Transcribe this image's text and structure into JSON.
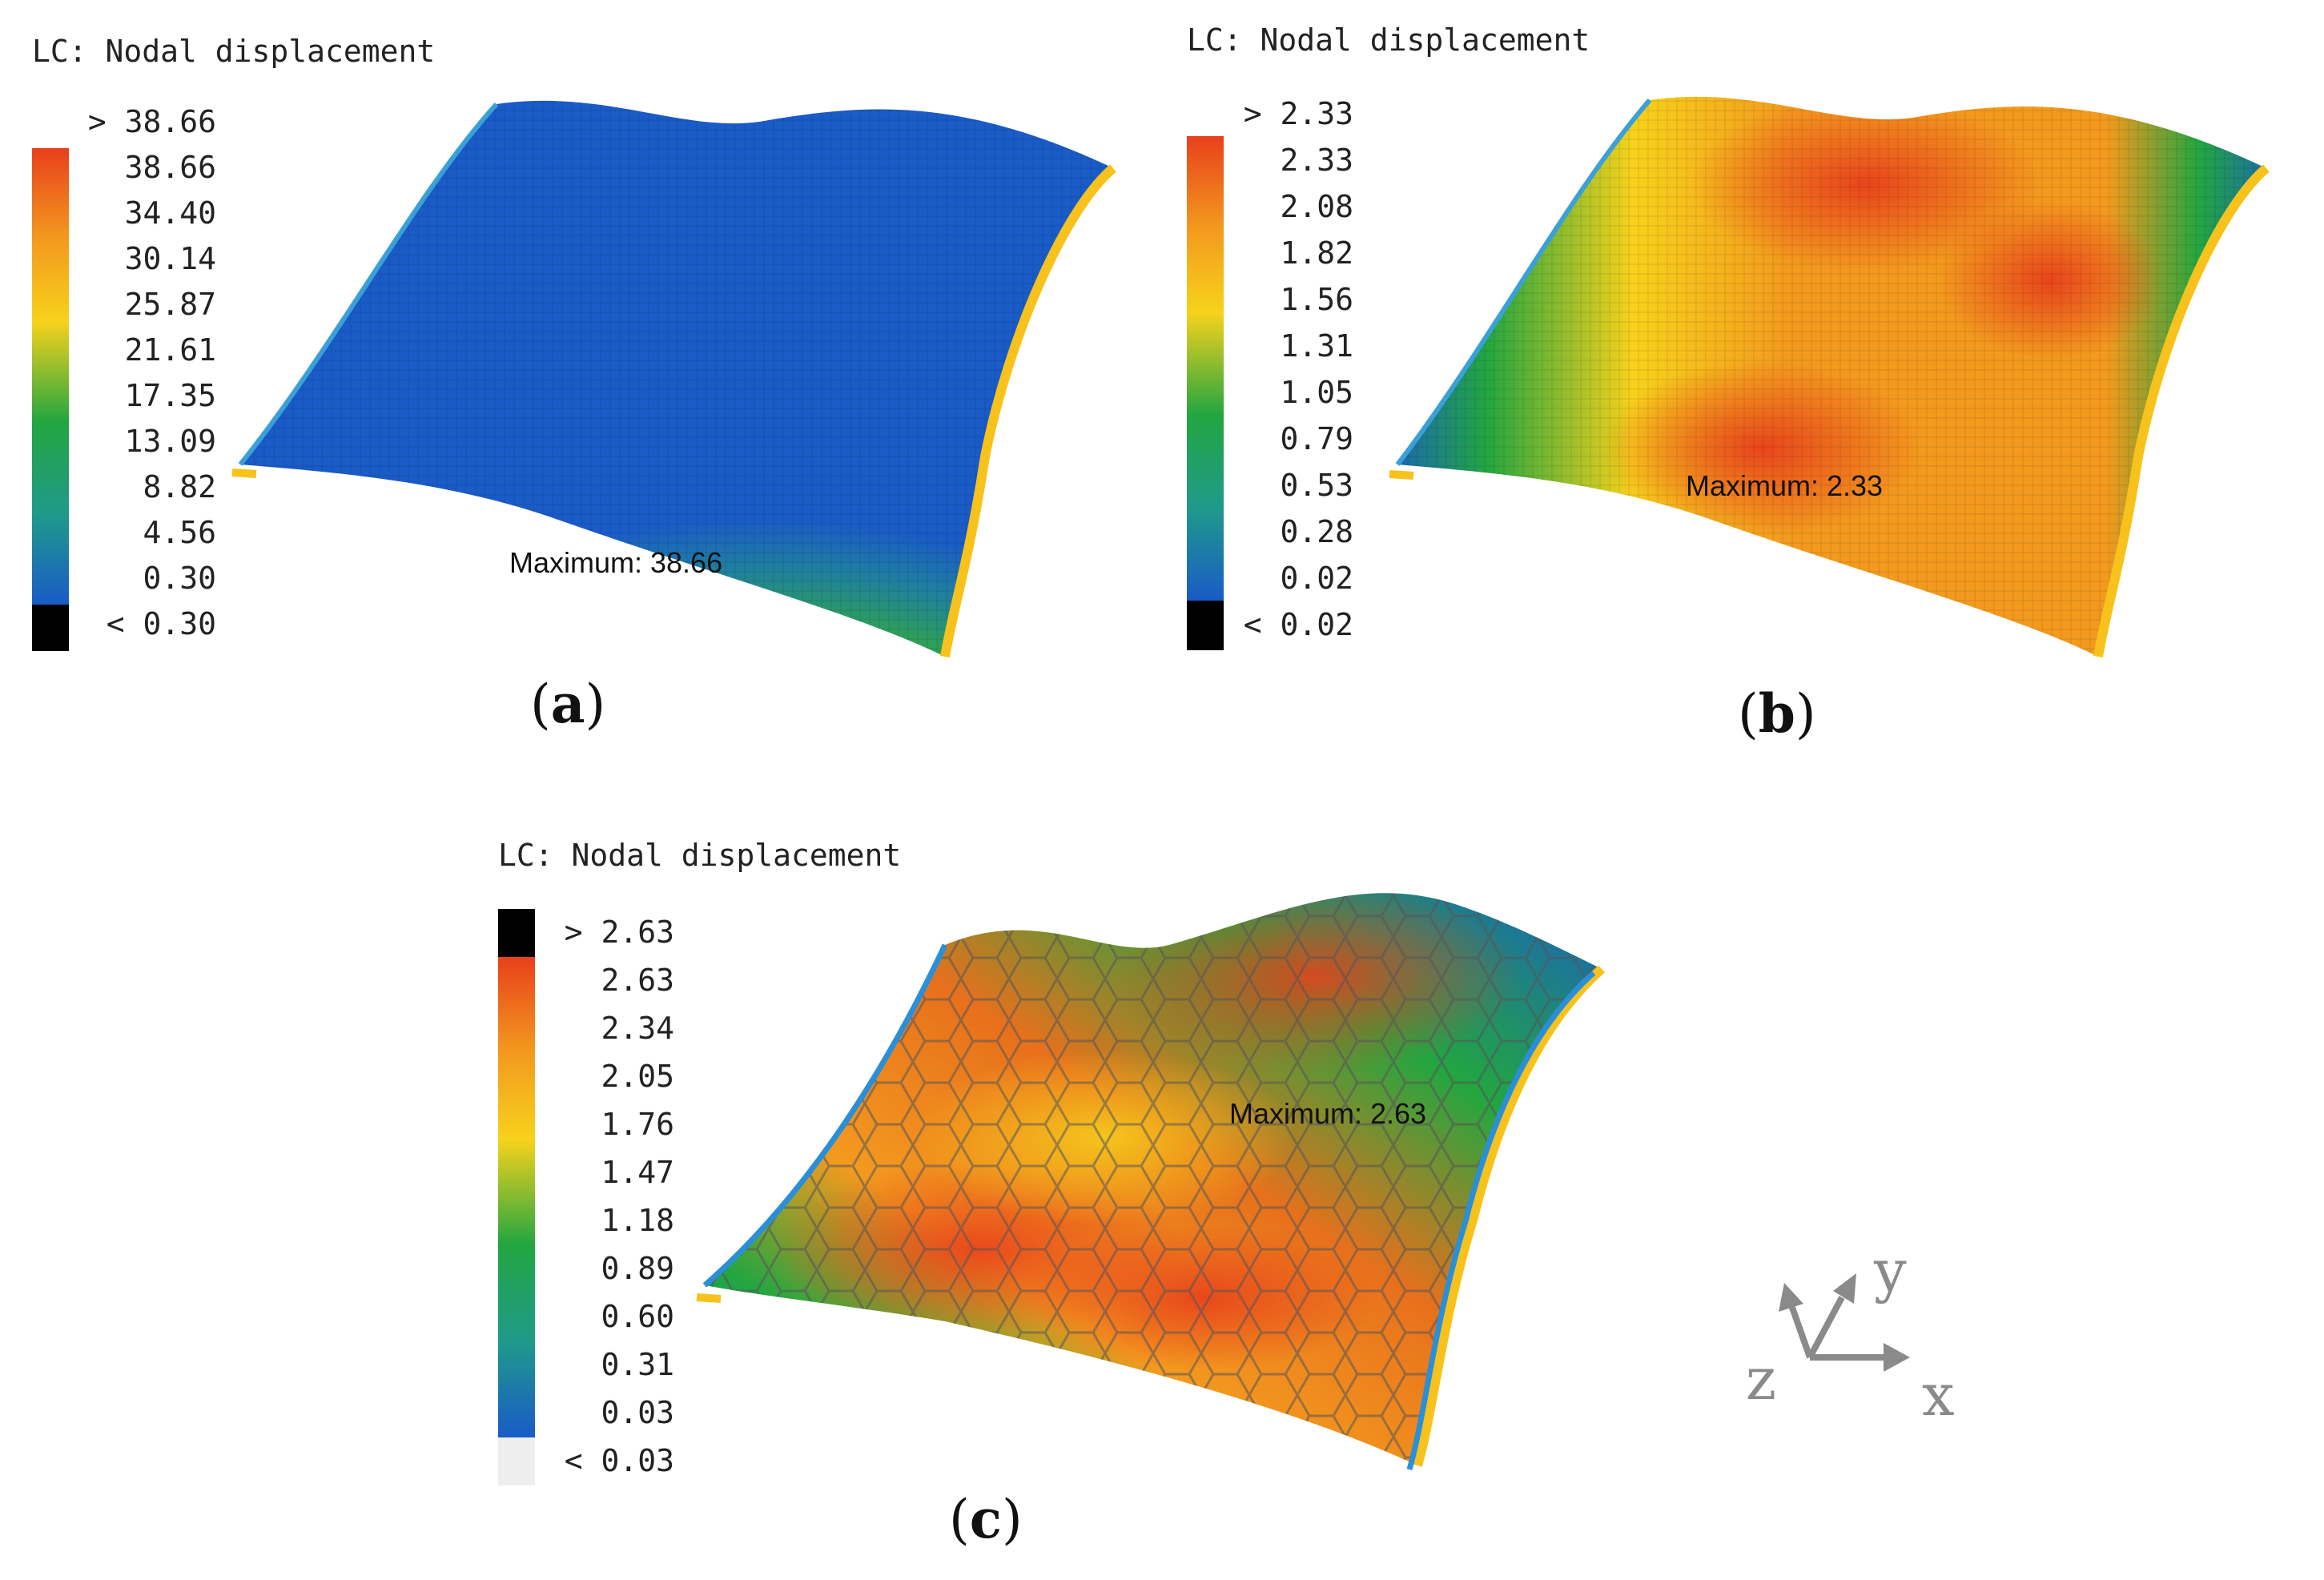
{
  "panels": [
    {
      "id": "a",
      "title": "LC: Nodal displacement",
      "legend": [
        "> 38.66",
        "38.66",
        "34.40",
        "30.14",
        "25.87",
        "21.61",
        "17.35",
        "13.09",
        "8.82",
        "4.56",
        "0.30",
        "< 0.30"
      ],
      "maximum": "Maximum: 38.66",
      "caption": "a"
    },
    {
      "id": "b",
      "title": "LC: Nodal displacement",
      "legend": [
        "> 2.33",
        "2.33",
        "2.08",
        "1.82",
        "1.56",
        "1.31",
        "1.05",
        "0.79",
        "0.53",
        "0.28",
        "0.02",
        "< 0.02"
      ],
      "maximum": "Maximum: 2.33",
      "caption": "b"
    },
    {
      "id": "c",
      "title": "LC: Nodal displacement",
      "legend": [
        "> 2.63",
        "2.63",
        "2.34",
        "2.05",
        "1.76",
        "1.47",
        "1.18",
        "0.89",
        "0.60",
        "0.31",
        "0.03",
        "< 0.03"
      ],
      "maximum": "Maximum: 2.63",
      "caption": "c"
    }
  ],
  "axes": {
    "x": "x",
    "y": "y",
    "z": "z"
  },
  "colors": {
    "red": "#e8401c",
    "orange": "#f39a1e",
    "yellow": "#f7d21c",
    "green": "#22a640",
    "teal": "#1f9a8a",
    "blue": "#1a5bc7",
    "over_a": "#000000",
    "under_a": "#000000",
    "over_c": "#000000",
    "under_c": "#eeeeee",
    "axis_gray": "#8a8a8a"
  }
}
